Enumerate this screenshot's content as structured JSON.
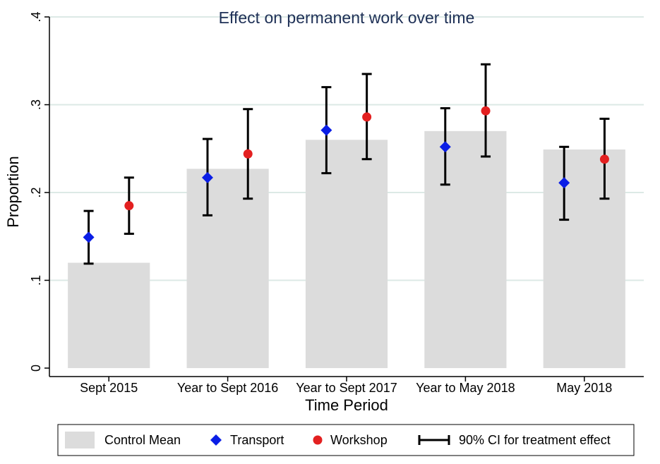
{
  "chart_data": {
    "type": "bar",
    "title": "Effect on permanent work over time",
    "xlabel": "Time Period",
    "ylabel": "Proportion",
    "ylim": [
      0,
      0.4
    ],
    "yticks": [
      0,
      0.1,
      0.2,
      0.3,
      0.4
    ],
    "ytick_labels": [
      "0",
      ".1",
      ".2",
      ".3",
      ".4"
    ],
    "grid": true,
    "legend_position": "bottom",
    "categories": [
      "Sept 2015",
      "Year to Sept 2016",
      "Year to Sept 2017",
      "Year to May 2018",
      "May 2018"
    ],
    "series": [
      {
        "name": "Control Mean",
        "kind": "bar",
        "color": "#dcdcdc",
        "values": [
          0.12,
          0.227,
          0.26,
          0.27,
          0.249
        ]
      },
      {
        "name": "Transport",
        "kind": "point",
        "marker": "diamond",
        "color": "#0a1ee6",
        "values": [
          0.149,
          0.217,
          0.271,
          0.252,
          0.211
        ],
        "ci_low": [
          0.119,
          0.174,
          0.222,
          0.209,
          0.169
        ],
        "ci_high": [
          0.179,
          0.261,
          0.32,
          0.296,
          0.252
        ]
      },
      {
        "name": "Workshop",
        "kind": "point",
        "marker": "circle",
        "color": "#e32020",
        "values": [
          0.185,
          0.244,
          0.286,
          0.293,
          0.238
        ],
        "ci_low": [
          0.153,
          0.193,
          0.238,
          0.241,
          0.193
        ],
        "ci_high": [
          0.217,
          0.295,
          0.335,
          0.346,
          0.284
        ]
      }
    ],
    "legend": [
      {
        "label": "Control Mean",
        "symbol": "bar"
      },
      {
        "label": "Transport",
        "symbol": "diamond"
      },
      {
        "label": "Workshop",
        "symbol": "circle"
      },
      {
        "label": "90% CI for treatment effect",
        "symbol": "ci"
      }
    ],
    "colors": {
      "title": "#1e3056",
      "grid": "#dce9e6",
      "ci": "#000000"
    }
  }
}
